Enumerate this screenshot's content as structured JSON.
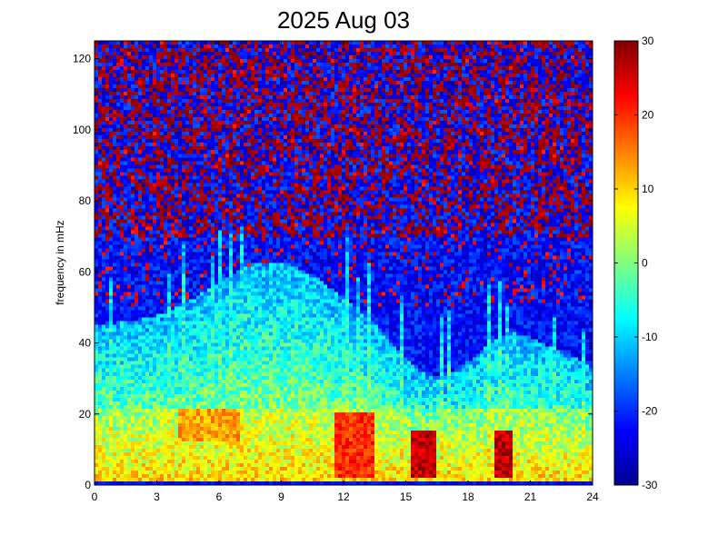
{
  "chart_data": {
    "type": "heatmap",
    "title": "2025 Aug 03",
    "xlabel": "",
    "ylabel": "frequency in mHz",
    "xlim": [
      0,
      24
    ],
    "ylim": [
      0,
      125
    ],
    "x_ticks": [
      "0",
      "3",
      "6",
      "9",
      "12",
      "15",
      "18",
      "21",
      "24"
    ],
    "y_ticks": [
      "0",
      "20",
      "40",
      "60",
      "80",
      "100",
      "120"
    ],
    "colorbar": {
      "colormap": "jet",
      "range": [
        -30,
        30
      ],
      "ticks": [
        "30",
        "20",
        "10",
        "0",
        "-10",
        "-20",
        "-30"
      ]
    },
    "grid": false,
    "bright_features": [
      {
        "time_start": 11.5,
        "time_end": 13.5,
        "freq_start": 2,
        "freq_end": 20,
        "level": 22
      },
      {
        "time_start": 15.2,
        "time_end": 16.5,
        "freq_start": 2,
        "freq_end": 15,
        "level": 28
      },
      {
        "time_start": 19.2,
        "time_end": 20.2,
        "freq_start": 2,
        "freq_end": 15,
        "level": 28
      },
      {
        "time_start": 4.0,
        "time_end": 7.0,
        "freq_start": 12,
        "freq_end": 22,
        "level": 15
      }
    ]
  }
}
